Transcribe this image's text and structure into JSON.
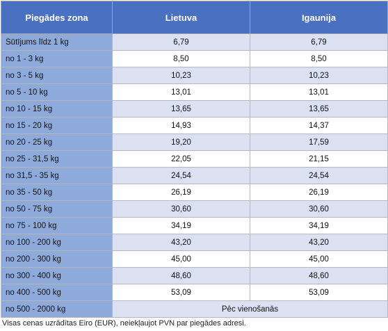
{
  "table": {
    "header": [
      "Piegādes zona",
      "Lietuva",
      "Igaunija"
    ],
    "rows": [
      [
        "Sūtījums līdz 1 kg",
        "6,79",
        "6,79"
      ],
      [
        "no 1 - 3 kg",
        "8,50",
        "8,50"
      ],
      [
        "no 3 - 5 kg",
        "10,23",
        "10,23"
      ],
      [
        "no 5 - 10 kg",
        "13,01",
        "13,01"
      ],
      [
        "no 10 - 15 kg",
        "13,65",
        "13,65"
      ],
      [
        "no 15 - 20 kg",
        "14,93",
        "14,37"
      ],
      [
        "no 20 - 25 kg",
        "19,20",
        "17,59"
      ],
      [
        "no 25 - 31,5 kg",
        "22,05",
        "21,15"
      ],
      [
        "no 31,5 - 35 kg",
        "24,54",
        "24,54"
      ],
      [
        "no 35 - 50 kg",
        "26,19",
        "26,19"
      ],
      [
        "no 50 - 75 kg",
        "30,60",
        "30,60"
      ],
      [
        "no 75 - 100 kg",
        "34,19",
        "34,19"
      ],
      [
        "no 100 - 200 kg",
        "43,20",
        "43,20"
      ],
      [
        "no 200 - 300 kg",
        "45,00",
        "45,00"
      ],
      [
        "no 300 - 400 kg",
        "48,60",
        "48,60"
      ],
      [
        "no 400 - 500 kg",
        "53,09",
        "53,09"
      ],
      [
        "no 500 - 2000 kg",
        "Pēc vienošanās"
      ]
    ]
  },
  "footnote": "Visas cenas uzrādītas Eiro (EUR), neiekļaujot PVN par piegādes adresi."
}
